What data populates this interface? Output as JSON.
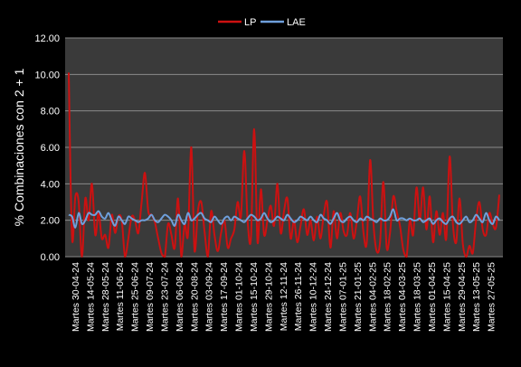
{
  "chart_data": {
    "type": "line",
    "ylabel": "% Combinaciones con 2 + 1",
    "ylim": [
      0,
      12
    ],
    "yticks": [
      "0.00",
      "2.00",
      "4.00",
      "6.00",
      "8.00",
      "10.00",
      "12.00"
    ],
    "grid": "horizontal",
    "legend_position": "top",
    "x_tick_labels": [
      "Martes 30-04-24",
      "Martes 14-05-24",
      "Martes 28-05-24",
      "Martes 11-06-24",
      "Martes 25-06-24",
      "Martes 09-07-24",
      "Martes 23-07-24",
      "Martes 06-08-24",
      "Martes 20-08-24",
      "Martes 03-09-24",
      "Martes 17-09-24",
      "Martes 01-10-24",
      "Martes 15-10-24",
      "Martes 29-10-24",
      "Martes 12-11-24",
      "Martes 26-11-24",
      "Martes 10-12-24",
      "Martes 24-12-24",
      "Martes 07-01-25",
      "Martes 21-01-25",
      "Martes 04-02-25",
      "Martes 18-02-25",
      "Martes 04-03-25",
      "Martes 18-03-25",
      "Martes 01-04-25",
      "Martes 15-04-25",
      "Martes 29-04-25",
      "Martes 13-05-25",
      "Martes 27-05-25"
    ],
    "series": [
      {
        "name": "LP",
        "color": "#cc1111",
        "values": [
          10.1,
          1.0,
          3.3,
          3.0,
          0.0,
          3.2,
          2.0,
          4.0,
          1.2,
          2.4,
          1.0,
          1.2,
          0.5,
          2.3,
          1.3,
          2.2,
          2.0,
          0.0,
          1.0,
          2.2,
          2.0,
          1.3,
          3.0,
          4.6,
          2.5,
          2.3,
          1.9,
          1.0,
          0.2,
          0.0,
          1.8,
          1.2,
          0.5,
          3.2,
          0.0,
          1.8,
          1.2,
          6.0,
          0.3,
          2.5,
          3.0,
          1.4,
          0.0,
          2.5,
          1.2,
          0.3,
          1.3,
          2.0,
          0.5,
          1.0,
          1.5,
          3.0,
          2.2,
          5.8,
          2.0,
          1.0,
          7.0,
          0.8,
          3.7,
          1.2,
          2.0,
          2.8,
          1.7,
          4.0,
          1.3,
          2.5,
          3.2,
          1.0,
          2.0,
          0.8,
          1.7,
          2.6,
          1.2,
          2.0,
          0.9,
          2.2,
          1.0,
          2.3,
          3.0,
          0.5,
          2.5,
          1.0,
          2.4,
          1.4,
          1.2,
          2.4,
          1.0,
          2.0,
          3.3,
          1.3,
          0.8,
          5.3,
          1.8,
          0.3,
          0.8,
          4.1,
          0.5,
          1.3,
          3.3,
          2.5,
          1.7,
          0.4,
          0.0,
          2.0,
          1.2,
          3.8,
          2.0,
          3.8,
          1.5,
          3.3,
          0.8,
          2.5,
          1.2,
          2.4,
          1.0,
          5.5,
          1.8,
          0.8,
          3.2,
          0.7,
          0.0,
          0.6,
          0.2,
          2.0,
          3.0,
          1.5,
          1.2,
          2.4,
          1.8,
          1.6,
          3.4
        ],
        "labeled_points": {
          "max": 10.1,
          "second_max": 7.0,
          "peak_20_08_24": 6.0,
          "peak_01_10_24": 5.8,
          "peak_15_04_25": 5.5,
          "peak_04_02_25": 5.3
        }
      },
      {
        "name": "LAE",
        "color": "#6fa0dc",
        "values": [
          2.3,
          2.2,
          1.6,
          2.4,
          1.8,
          2.0,
          2.4,
          2.3,
          2.3,
          2.5,
          2.2,
          2.1,
          2.4,
          2.0,
          1.7,
          2.2,
          2.0,
          1.8,
          2.2,
          2.1,
          2.0,
          1.9,
          2.0,
          2.0,
          2.1,
          2.3,
          2.0,
          1.9,
          2.1,
          2.3,
          2.2,
          2.0,
          1.7,
          2.3,
          2.0,
          1.8,
          2.4,
          2.0,
          2.1,
          2.3,
          2.4,
          2.1,
          2.0,
          1.9,
          2.2,
          2.0,
          1.8,
          2.1,
          2.2,
          2.0,
          2.2,
          2.1,
          2.0,
          1.9,
          2.1,
          2.3,
          2.2,
          2.0,
          2.1,
          2.4,
          2.1,
          1.9,
          2.0,
          2.2,
          2.1,
          2.0,
          2.3,
          2.1,
          1.9,
          2.0,
          2.2,
          2.1,
          2.0,
          2.2,
          2.0,
          1.9,
          2.3,
          2.1,
          2.0,
          1.8,
          2.1,
          2.4,
          2.0,
          1.9,
          2.1,
          2.2,
          2.0,
          1.9,
          2.1,
          2.0,
          2.2,
          2.1,
          2.0,
          1.9,
          2.1,
          2.0,
          2.0,
          2.2,
          2.6,
          2.0,
          2.1,
          2.1,
          2.0,
          2.1,
          2.0,
          2.0,
          2.1,
          1.9,
          2.0,
          2.1,
          1.8,
          2.0,
          2.1,
          1.9,
          1.8,
          2.1,
          2.2,
          1.9,
          1.8,
          2.0,
          2.2,
          1.9,
          2.0,
          2.3,
          2.1,
          1.9,
          2.4,
          2.0,
          1.8,
          2.2,
          2.0
        ]
      }
    ]
  }
}
